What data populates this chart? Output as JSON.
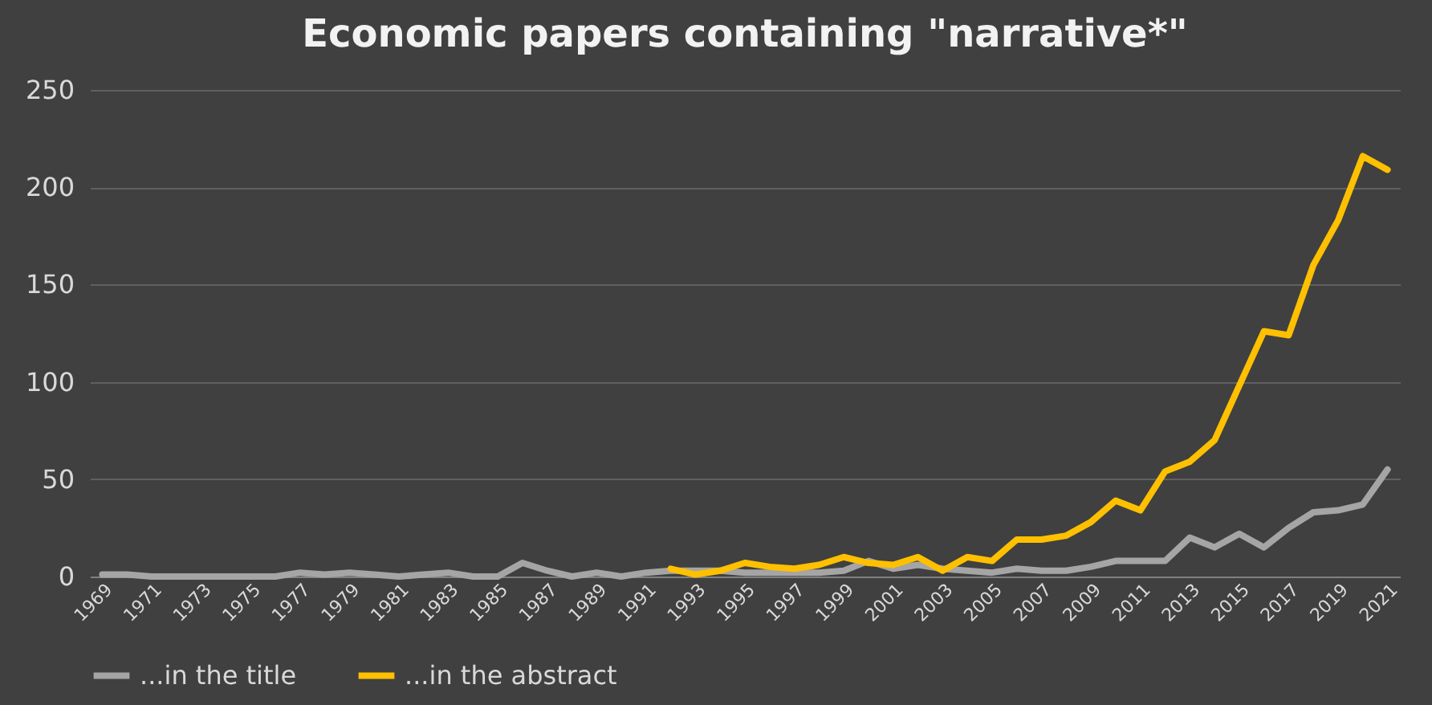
{
  "chart_data": {
    "type": "line",
    "title": "Economic papers containing \"narrative*\"",
    "categories": [
      "1969",
      null,
      "1971",
      null,
      "1973",
      null,
      "1975",
      null,
      "1977",
      null,
      "1979",
      null,
      "1981",
      null,
      "1983",
      null,
      "1985",
      null,
      "1987",
      null,
      "1989",
      null,
      "1991",
      null,
      "1993",
      null,
      "1995",
      null,
      "1997",
      null,
      "1999",
      null,
      "2001",
      null,
      "2003",
      null,
      "2005",
      null,
      "2007",
      null,
      "2009",
      null,
      "2011",
      null,
      "2013",
      null,
      "2015",
      null,
      "2017",
      null,
      "2019",
      null,
      "2021"
    ],
    "series": [
      {
        "name": "...in the title",
        "color": "#a5a5a5",
        "values": [
          1,
          1,
          0,
          0,
          0,
          0,
          0,
          0,
          2,
          1,
          2,
          1,
          0,
          1,
          2,
          0,
          0,
          7,
          3,
          0,
          2,
          0,
          2,
          3,
          3,
          3,
          2,
          2,
          2,
          2,
          3,
          8,
          4,
          6,
          4,
          3,
          2,
          4,
          3,
          3,
          5,
          8,
          8,
          8,
          20,
          15,
          22,
          15,
          25,
          33,
          34,
          37,
          55
        ]
      },
      {
        "name": "...in the abstract",
        "color": "#ffc000",
        "values": [
          null,
          null,
          null,
          null,
          null,
          null,
          null,
          null,
          null,
          null,
          null,
          null,
          null,
          null,
          null,
          null,
          null,
          null,
          null,
          null,
          null,
          null,
          null,
          4,
          1,
          3,
          7,
          5,
          4,
          6,
          10,
          7,
          6,
          10,
          3,
          10,
          8,
          19,
          19,
          21,
          28,
          39,
          34,
          54,
          59,
          70,
          98,
          126,
          124,
          160,
          183,
          216,
          209
        ]
      }
    ],
    "ylim": [
      0,
      250
    ],
    "yticks": [
      0,
      50,
      100,
      150,
      200,
      250
    ],
    "grid": "y",
    "legend": "bottom",
    "line_style": "solid",
    "marker": "none"
  }
}
